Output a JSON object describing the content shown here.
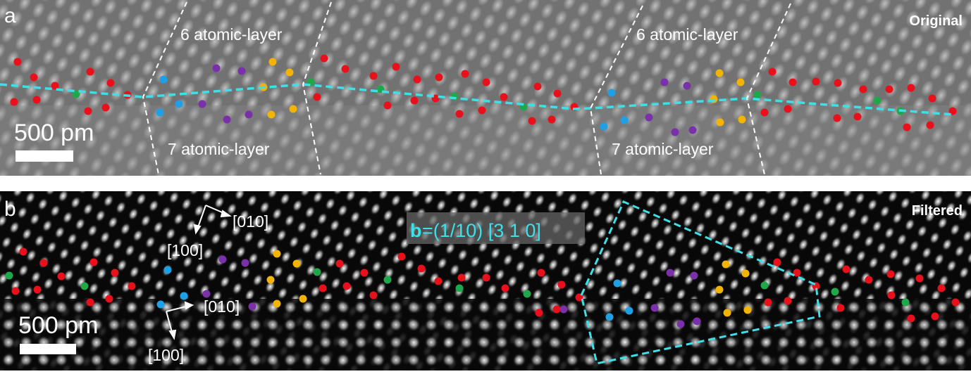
{
  "panel_a": {
    "label": "a",
    "tag": "Original",
    "annotations": [
      "6 atomic-layer",
      "6 atomic-layer",
      "7 atomic-layer",
      "7 atomic-layer"
    ],
    "scale_bar": "500 pm"
  },
  "panel_b": {
    "label": "b",
    "tag": "Filtered",
    "directions": [
      "[010]",
      "[100]",
      "[010]",
      "[100]"
    ],
    "burgers_symbol": "b",
    "burgers_vector": "=(1/10) [3 1 0]",
    "scale_bar": "500 pm"
  }
}
